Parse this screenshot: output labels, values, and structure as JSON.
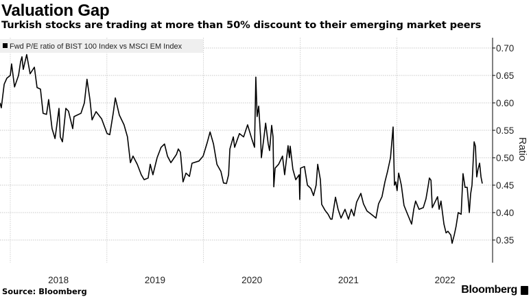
{
  "header": {
    "title": "Valuation Gap",
    "subtitle": "Turkish stocks are trading at more than 50% discount to their emerging market peers"
  },
  "footer": {
    "source": "Source: Bloomberg",
    "brand": "Bloomberg"
  },
  "colors": {
    "line": "#000000",
    "grid": "#c8c8c8",
    "legend_bg": "#efefef"
  },
  "chart_data": {
    "type": "line",
    "title": "Valuation Gap",
    "subtitle": "Turkish stocks are trading at more than 50% discount to their emerging market peers",
    "xlabel": "",
    "ylabel": "Ratio",
    "y_axis_position": "right",
    "legend_position": "top-left",
    "grid": true,
    "ylim": [
      0.305,
      0.72
    ],
    "xlim": [
      "2017-11-23",
      "2022-12-29"
    ],
    "x_ticks": [
      {
        "label": "2018",
        "year_start": "2018-01-01",
        "center": "2018-07-02"
      },
      {
        "label": "2019",
        "year_start": "2019-01-01",
        "center": "2019-07-02"
      },
      {
        "label": "2020",
        "year_start": "2020-01-01",
        "center": "2020-07-02"
      },
      {
        "label": "2021",
        "year_start": "2021-01-01",
        "center": "2021-07-02"
      },
      {
        "label": "2022",
        "year_start": "2022-01-01",
        "center": "2022-07-02"
      }
    ],
    "y_ticks": [
      "0.35",
      "0.40",
      "0.45",
      "0.50",
      "0.55",
      "0.60",
      "0.65",
      "0.70"
    ],
    "series": [
      {
        "name": "Fwd P/E ratio of BIST 100 Index vs MSCI EM Index",
        "x": [
          "2017-11-23",
          "2017-11-28",
          "2017-12-09",
          "2017-12-19",
          "2018-01-01",
          "2018-01-06",
          "2018-01-17",
          "2018-02-01",
          "2018-02-09",
          "2018-02-14",
          "2018-02-19",
          "2018-03-04",
          "2018-03-17",
          "2018-04-02",
          "2018-04-12",
          "2018-04-25",
          "2018-05-05",
          "2018-05-18",
          "2018-05-26",
          "2018-06-08",
          "2018-06-19",
          "2018-06-26",
          "2018-07-04",
          "2018-07-09",
          "2018-07-17",
          "2018-07-30",
          "2018-08-09",
          "2018-08-25",
          "2018-08-30",
          "2018-09-25",
          "2018-10-08",
          "2018-10-18",
          "2018-10-29",
          "2018-11-06",
          "2018-11-21",
          "2018-12-12",
          "2019-01-02",
          "2019-01-12",
          "2019-01-25",
          "2019-02-02",
          "2019-02-17",
          "2019-03-07",
          "2019-03-20",
          "2019-03-31",
          "2019-04-10",
          "2019-04-26",
          "2019-05-11",
          "2019-05-22",
          "2019-06-06",
          "2019-06-14",
          "2019-06-24",
          "2019-07-10",
          "2019-07-25",
          "2019-08-07",
          "2019-08-18",
          "2019-08-31",
          "2019-09-21",
          "2019-09-28",
          "2019-10-06",
          "2019-10-16",
          "2019-10-27",
          "2019-11-09",
          "2019-11-19",
          "2019-12-15",
          "2019-12-31",
          "2020-01-15",
          "2020-01-26",
          "2020-02-08",
          "2020-02-21",
          "2020-03-07",
          "2020-03-17",
          "2020-03-28",
          "2020-04-05",
          "2020-04-10",
          "2020-04-23",
          "2020-04-28",
          "2020-05-16",
          "2020-06-01",
          "2020-06-16",
          "2020-07-02",
          "2020-07-12",
          "2020-07-17",
          "2020-07-22",
          "2020-07-28",
          "2020-08-04",
          "2020-08-07",
          "2020-08-17",
          "2020-08-23",
          "2020-09-02",
          "2020-09-07",
          "2020-09-15",
          "2020-09-20",
          "2020-09-23",
          "2020-09-28",
          "2020-10-11",
          "2020-10-26",
          "2020-11-03",
          "2020-11-16",
          "2020-11-21",
          "2020-11-24",
          "2020-12-04",
          "2020-12-15",
          "2020-12-28",
          "2020-12-30",
          "2021-01-02",
          "2021-01-17",
          "2021-01-28",
          "2021-02-10",
          "2021-02-20",
          "2021-03-02",
          "2021-03-08",
          "2021-03-18",
          "2021-03-23",
          "2021-04-05",
          "2021-04-16",
          "2021-04-26",
          "2021-05-01",
          "2021-05-14",
          "2021-05-24",
          "2021-06-04",
          "2021-06-19",
          "2021-07-02",
          "2021-07-13",
          "2021-07-23",
          "2021-08-02",
          "2021-08-18",
          "2021-08-28",
          "2021-09-10",
          "2021-09-29",
          "2021-10-14",
          "2021-10-24",
          "2021-11-06",
          "2021-11-17",
          "2021-11-27",
          "2021-12-08",
          "2021-12-18",
          "2021-12-23",
          "2021-12-28",
          "2022-01-02",
          "2022-01-08",
          "2022-01-18",
          "2022-01-28",
          "2022-02-08",
          "2022-02-26",
          "2022-03-06",
          "2022-03-13",
          "2022-03-26",
          "2022-04-11",
          "2022-04-21",
          "2022-04-29",
          "2022-05-04",
          "2022-05-10",
          "2022-05-15",
          "2022-05-22",
          "2022-06-04",
          "2022-06-10",
          "2022-06-17",
          "2022-06-28",
          "2022-07-06",
          "2022-07-13",
          "2022-07-24",
          "2022-07-29",
          "2022-08-06",
          "2022-08-13",
          "2022-08-21",
          "2022-09-01",
          "2022-09-08",
          "2022-09-16",
          "2022-09-24",
          "2022-10-02",
          "2022-10-07",
          "2022-10-12",
          "2022-10-20",
          "2022-10-25",
          "2022-10-30",
          "2022-11-04",
          "2022-11-10",
          "2022-11-15",
          "2022-11-20"
        ],
        "y": [
          0.6,
          0.591,
          0.634,
          0.645,
          0.65,
          0.671,
          0.629,
          0.65,
          0.675,
          0.684,
          0.661,
          0.688,
          0.653,
          0.665,
          0.628,
          0.625,
          0.581,
          0.579,
          0.606,
          0.553,
          0.535,
          0.56,
          0.59,
          0.538,
          0.529,
          0.59,
          0.585,
          0.553,
          0.575,
          0.581,
          0.6,
          0.643,
          0.606,
          0.569,
          0.584,
          0.571,
          0.544,
          0.542,
          0.581,
          0.609,
          0.578,
          0.56,
          0.538,
          0.491,
          0.503,
          0.488,
          0.469,
          0.46,
          0.463,
          0.488,
          0.469,
          0.5,
          0.519,
          0.525,
          0.503,
          0.491,
          0.506,
          0.516,
          0.51,
          0.456,
          0.472,
          0.466,
          0.49,
          0.494,
          0.503,
          0.527,
          0.547,
          0.525,
          0.488,
          0.475,
          0.454,
          0.453,
          0.469,
          0.516,
          0.538,
          0.519,
          0.544,
          0.538,
          0.56,
          0.534,
          0.519,
          0.647,
          0.575,
          0.594,
          0.538,
          0.5,
          0.538,
          0.563,
          0.525,
          0.513,
          0.559,
          0.538,
          0.447,
          0.481,
          0.488,
          0.503,
          0.469,
          0.522,
          0.5,
          0.521,
          0.479,
          0.46,
          0.469,
          0.424,
          0.481,
          0.484,
          0.45,
          0.444,
          0.431,
          0.45,
          0.488,
          0.46,
          0.415,
          0.404,
          0.397,
          0.388,
          0.388,
          0.428,
          0.406,
          0.39,
          0.406,
          0.388,
          0.406,
          0.394,
          0.419,
          0.435,
          0.416,
          0.403,
          0.396,
          0.39,
          0.416,
          0.429,
          0.456,
          0.475,
          0.5,
          0.556,
          0.45,
          0.456,
          0.44,
          0.472,
          0.45,
          0.413,
          0.4,
          0.379,
          0.406,
          0.421,
          0.406,
          0.409,
          0.425,
          0.447,
          0.463,
          0.459,
          0.409,
          0.416,
          0.429,
          0.406,
          0.421,
          0.379,
          0.363,
          0.366,
          0.359,
          0.344,
          0.359,
          0.375,
          0.4,
          0.397,
          0.471,
          0.446,
          0.446,
          0.4,
          0.434,
          0.45,
          0.529,
          0.521,
          0.465,
          0.479,
          0.49,
          0.465,
          0.453
        ]
      }
    ]
  }
}
